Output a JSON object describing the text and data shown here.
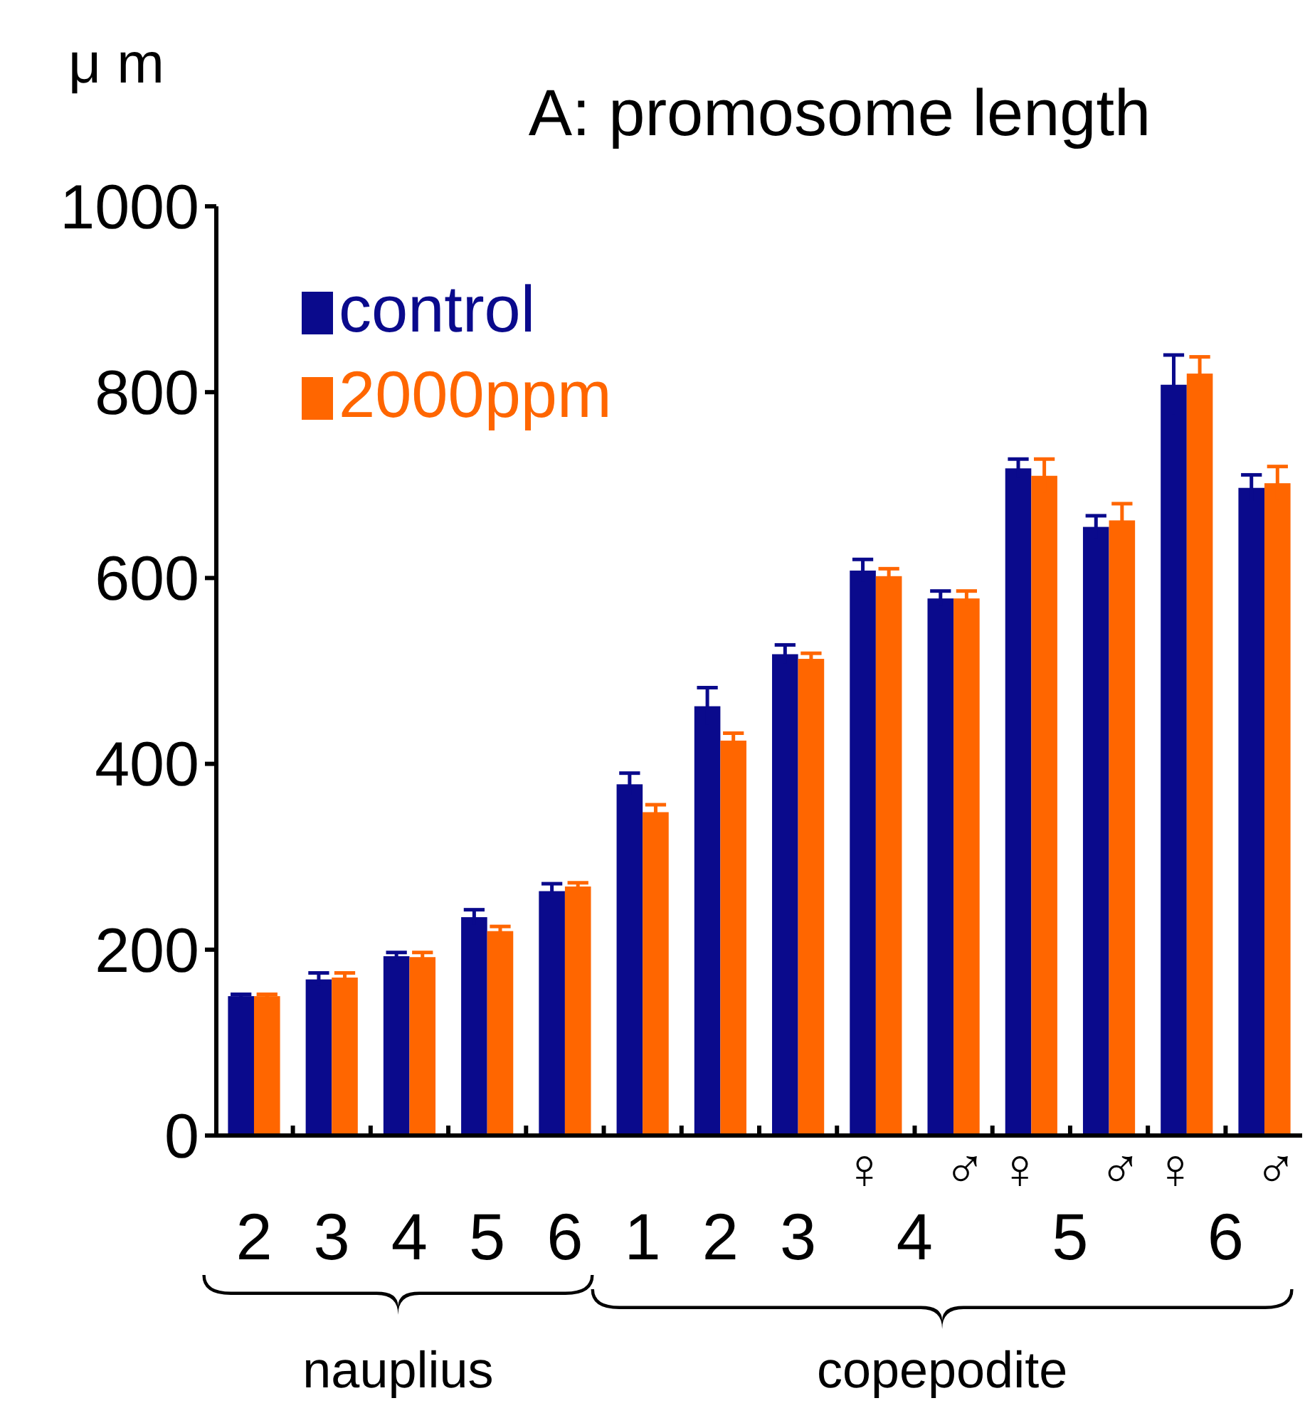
{
  "chart_data": {
    "type": "bar",
    "title": "A: promosome length",
    "ylabel": "μ m",
    "categories": [
      "2",
      "3",
      "4",
      "5",
      "6",
      "1",
      "2",
      "3",
      "♀",
      "♂",
      "♀",
      "♂",
      "♀",
      "♂"
    ],
    "series": [
      {
        "name": "control",
        "color": "#0a0a8c",
        "values": [
          150,
          168,
          193,
          235,
          263,
          378,
          462,
          518,
          608,
          578,
          718,
          655,
          808,
          697
        ],
        "errors": [
          2,
          7,
          4,
          8,
          8,
          12,
          20,
          10,
          12,
          8,
          10,
          12,
          32,
          14
        ]
      },
      {
        "name": "2000ppm",
        "color": "#ff6600",
        "values": [
          150,
          170,
          192,
          220,
          268,
          348,
          425,
          513,
          602,
          578,
          710,
          662,
          820,
          702
        ],
        "errors": [
          2,
          5,
          5,
          5,
          4,
          8,
          8,
          6,
          8,
          8,
          18,
          18,
          18,
          18
        ]
      }
    ],
    "ylim": [
      0,
      1000
    ],
    "yticks": [
      0,
      200,
      400,
      600,
      800,
      1000
    ],
    "legend": "top left",
    "annotations": [
      "4",
      "5",
      "6",
      "nauplius",
      "copepodite"
    ]
  }
}
